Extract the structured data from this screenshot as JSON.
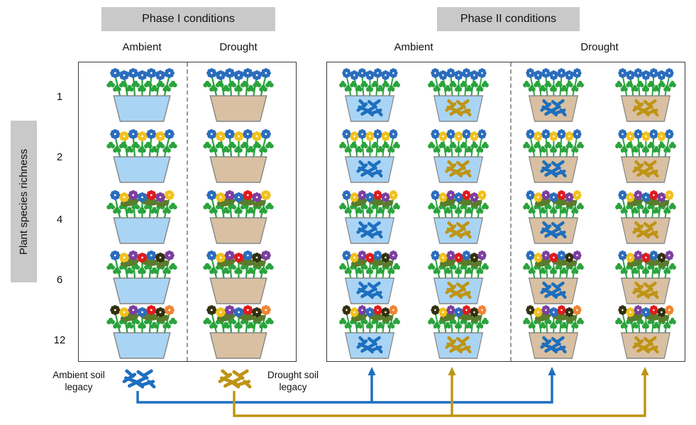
{
  "header": {
    "phase1": "Phase I conditions",
    "phase2": "Phase II conditions"
  },
  "columns": {
    "phase1": [
      "Ambient",
      "Drought"
    ],
    "phase2": [
      "Ambient",
      "Drought"
    ]
  },
  "axis": {
    "label": "Plant species richness",
    "levels": [
      "1",
      "2",
      "4",
      "6",
      "12"
    ]
  },
  "legend": {
    "ambient": "Ambient soil legacy",
    "drought": "Drought soil legacy"
  },
  "colors": {
    "header_bg": "#c9c9c9",
    "ambient_water_pot": "#aad4f4",
    "drought_water_pot": "#d9c0a2",
    "ambient_legacy": "#1d6fbe",
    "drought_legacy": "#bf9414",
    "foliage": "#2aa33c",
    "dark_leaf": "#5a7c2c",
    "pot_stroke": "#868686",
    "flower_blue": "#2a6cbd",
    "flower_yellow": "#f2c11c",
    "flower_purple": "#7b3fa0",
    "flower_red": "#e01b1c",
    "flower_black": "#33300f",
    "flower_orange": "#ef8432"
  },
  "design": {
    "phase1_pots": [
      {
        "water": "ambient"
      },
      {
        "water": "drought"
      }
    ],
    "phase2_pots": [
      {
        "water": "ambient",
        "legacy": "ambient"
      },
      {
        "water": "ambient",
        "legacy": "drought"
      },
      {
        "water": "drought",
        "legacy": "ambient"
      },
      {
        "water": "drought",
        "legacy": "drought"
      }
    ],
    "flowers_by_level": {
      "1": [
        "blue",
        "blue",
        "blue",
        "blue",
        "blue",
        "blue",
        "blue"
      ],
      "2": [
        "blue",
        "yellow",
        "blue",
        "yellow",
        "blue",
        "yellow",
        "blue"
      ],
      "4": [
        "blue",
        "yellow",
        "purple",
        "blue",
        "red",
        "purple",
        "yellow"
      ],
      "6": [
        "blue",
        "yellow",
        "purple",
        "red",
        "blue",
        "black",
        "purple"
      ],
      "12": [
        "black",
        "yellow",
        "purple",
        "blue",
        "red",
        "black",
        "orange"
      ]
    },
    "big_leaves_levels": [
      "4",
      "6",
      "12"
    ]
  }
}
